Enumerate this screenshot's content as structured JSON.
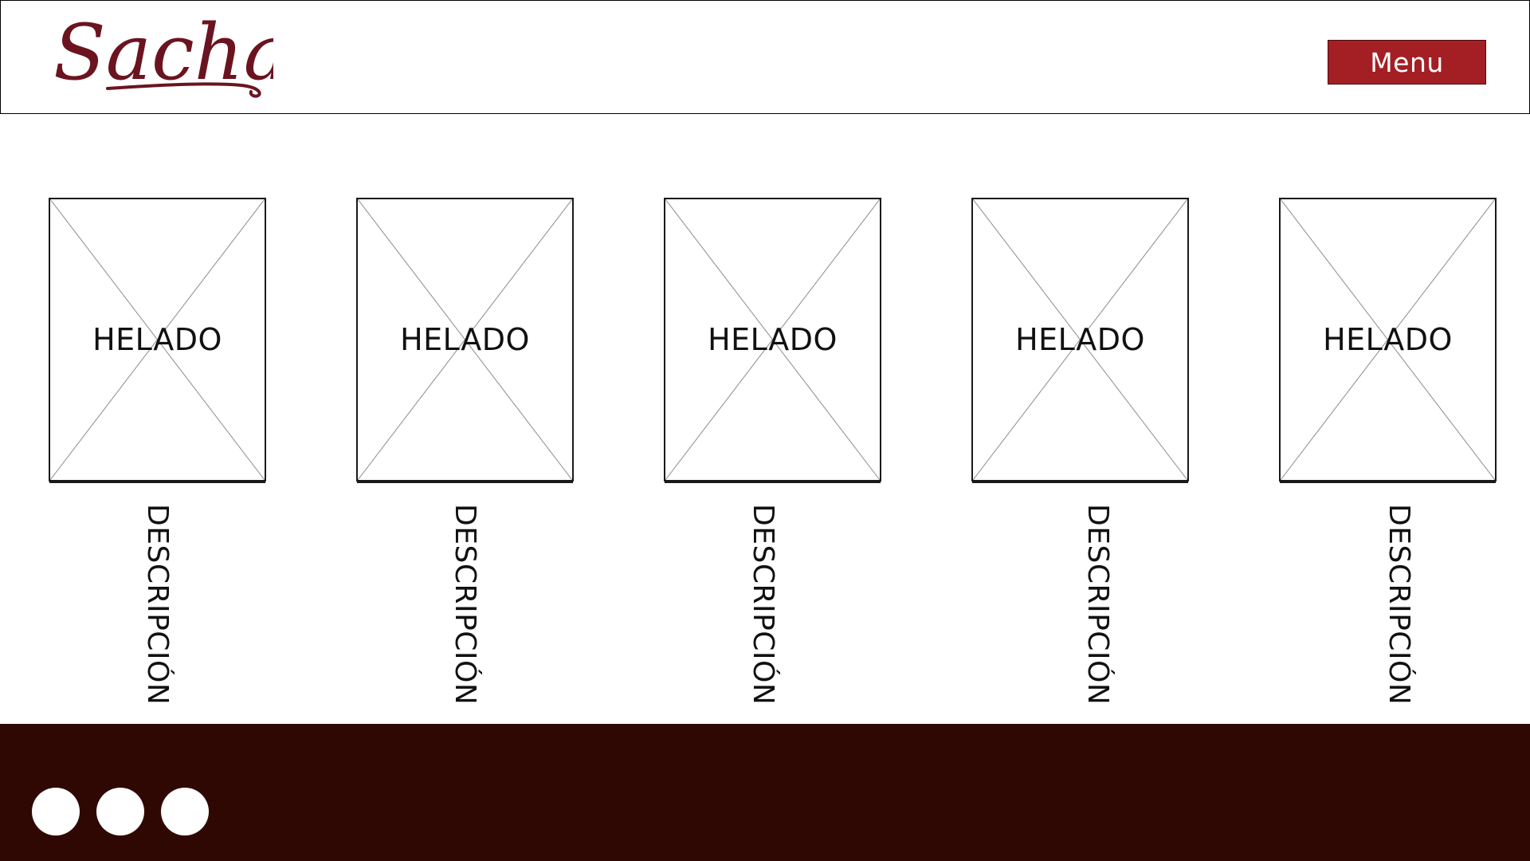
{
  "header": {
    "logo_text": "Sacha",
    "menu_label": "Menu"
  },
  "colors": {
    "brand": "#6b1420",
    "menu_button_bg": "#a41f24",
    "footer_bg": "#300803"
  },
  "products": [
    {
      "image_label": "HELADO",
      "description": "DESCRIPCIÓN"
    },
    {
      "image_label": "HELADO",
      "description": "DESCRIPCIÓN"
    },
    {
      "image_label": "HELADO",
      "description": "DESCRIPCIÓN"
    },
    {
      "image_label": "HELADO",
      "description": "DESCRIPCIÓN"
    },
    {
      "image_label": "HELADO",
      "description": "DESCRIPCIÓN"
    }
  ],
  "footer": {
    "social_icons": [
      "social-icon-1",
      "social-icon-2",
      "social-icon-3"
    ]
  }
}
